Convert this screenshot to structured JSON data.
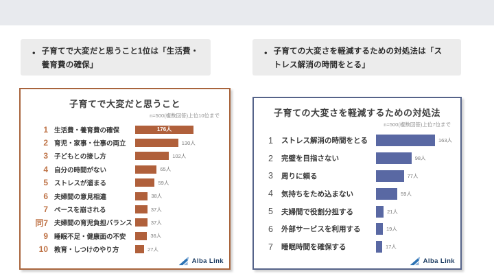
{
  "callouts": {
    "bullet": "●",
    "left_text": "子育てで大変だと思うこと1位は「生活費・養育費の確保」",
    "right_text": "子育ての大変さを軽減するための対処法は「ストレス解消の時間をとる」"
  },
  "branding": {
    "logo_text": "Alba Link",
    "logo_icon": "alba-link-triangle-icon",
    "logo_text_color": "#17375e"
  },
  "colors": {
    "top_band": "#e8eaee",
    "callout_bg": "#ececec",
    "left_accent": "#a8643c",
    "left_bar": "#b0603b",
    "left_rank": "#bf7448",
    "right_accent": "#556389",
    "right_bar": "#5968a3",
    "value_text": "#7a7a7a"
  },
  "chart_data": [
    {
      "type": "bar",
      "orientation": "horizontal",
      "title": "子育てで大変だと思うこと",
      "subtitle": "n=500(複数回答)上位10位まで",
      "unit": "人",
      "bar_color": "#b0603b",
      "value_label_first_inside_bar": true,
      "ranks": [
        "1",
        "2",
        "3",
        "4",
        "5",
        "6",
        "7",
        "同7",
        "9",
        "10"
      ],
      "categories": [
        "生活費・養育費の確保",
        "育児・家事・仕事の両立",
        "子どもとの接し方",
        "自分の時間がない",
        "ストレスが溜まる",
        "夫婦間の意見相違",
        "ペースを崩される",
        "夫婦間の育児負担バランス",
        "睡眠不足・健康面の不安",
        "教育・しつけのやり方"
      ],
      "values": [
        176,
        130,
        102,
        65,
        59,
        38,
        37,
        37,
        36,
        27
      ],
      "xlim": [
        0,
        200
      ],
      "legend": false,
      "grid": false
    },
    {
      "type": "bar",
      "orientation": "horizontal",
      "title": "子育ての大変さを軽減するための対処法",
      "subtitle": "n=500(複数回答)上位7位まで",
      "unit": "人",
      "bar_color": "#5968a3",
      "value_label_first_inside_bar": false,
      "ranks": [
        "1",
        "2",
        "3",
        "4",
        "5",
        "6",
        "7"
      ],
      "categories": [
        "ストレス解消の時間をとる",
        "完璧を目指さない",
        "周りに頼る",
        "気持ちをため込まない",
        "夫婦間で役割分担する",
        "外部サービスを利用する",
        "睡眠時間を確保する"
      ],
      "values": [
        163,
        98,
        77,
        59,
        21,
        19,
        17
      ],
      "xlim": [
        0,
        200
      ],
      "legend": false,
      "grid": false
    }
  ]
}
